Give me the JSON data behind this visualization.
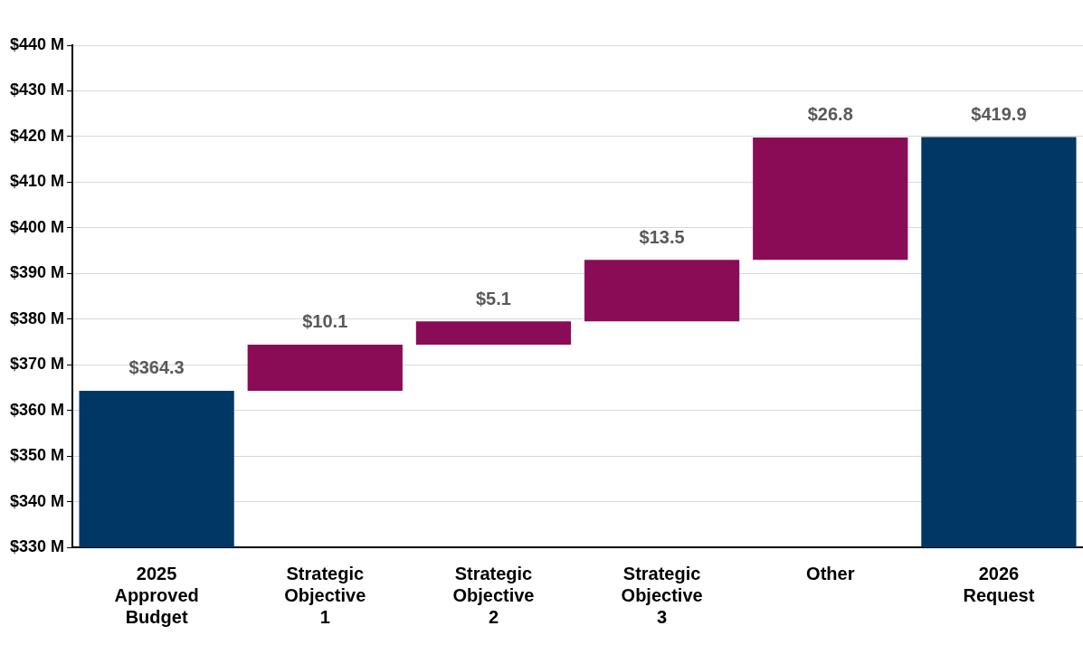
{
  "chart_data": {
    "type": "bar",
    "categories": [
      "2025 Approved Budget",
      "Strategic Objective 1",
      "Strategic Objective 2",
      "Strategic Objective 3",
      "Other",
      "2026 Request"
    ],
    "values": [
      364.3,
      10.1,
      5.1,
      13.5,
      26.8,
      419.9
    ],
    "base": [
      null,
      364.3,
      374.4,
      379.5,
      393.0,
      null
    ],
    "colors": [
      "#003865",
      "#8a0c56",
      "#8a0c56",
      "#8a0c56",
      "#8a0c56",
      "#003865"
    ],
    "value_labels": [
      "$364.3",
      "$10.1",
      "$5.1",
      "$13.5",
      "$26.8",
      "$419.9"
    ],
    "ylim": [
      330,
      440
    ],
    "yticks": [
      {
        "value": 330,
        "label": "$330 M"
      },
      {
        "value": 340,
        "label": "$340 M"
      },
      {
        "value": 350,
        "label": "$350 M"
      },
      {
        "value": 360,
        "label": "$360 M"
      },
      {
        "value": 370,
        "label": "$370 M"
      },
      {
        "value": 380,
        "label": "$380 M"
      },
      {
        "value": 390,
        "label": "$390 M"
      },
      {
        "value": 400,
        "label": "$400 M"
      },
      {
        "value": 410,
        "label": "$410 M"
      },
      {
        "value": 420,
        "label": "$420 M"
      },
      {
        "value": 430,
        "label": "$430 M"
      },
      {
        "value": 440,
        "label": "$440 M"
      }
    ],
    "grid": "y",
    "legend": false
  }
}
